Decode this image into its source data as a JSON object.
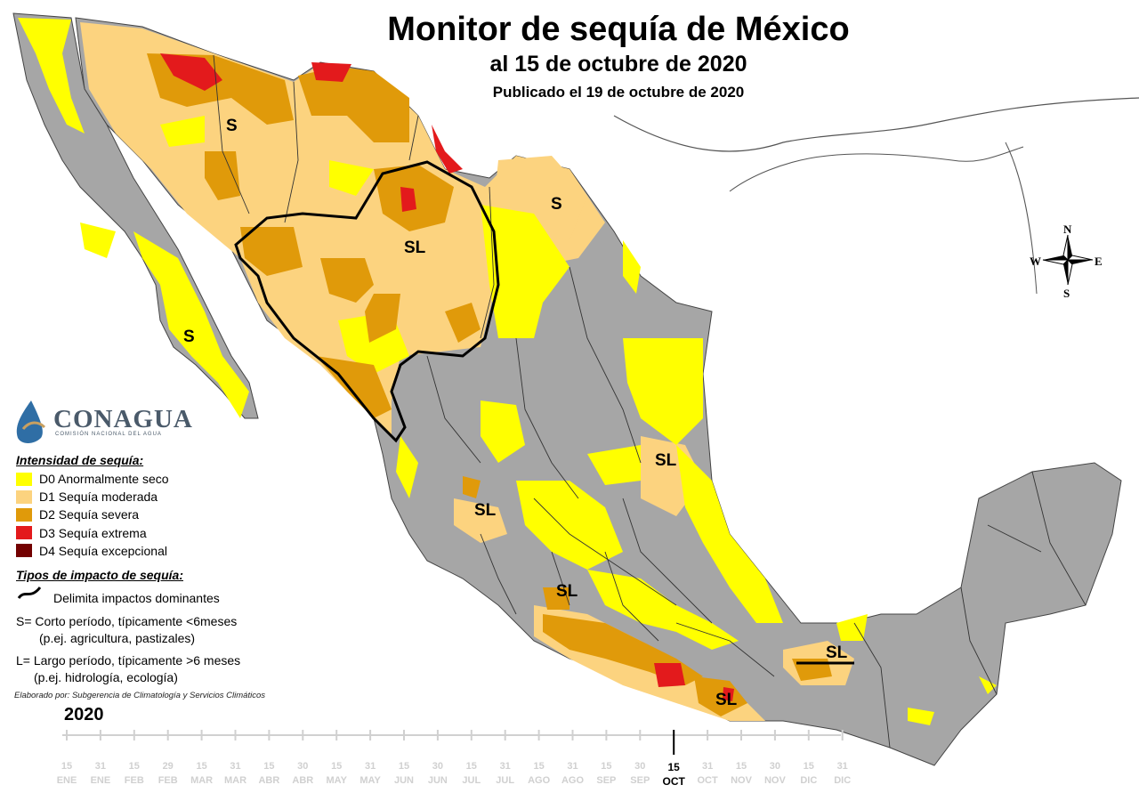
{
  "title": "Monitor de sequía de México",
  "subtitle": "al 15 de octubre de 2020",
  "published": "Publicado el 19 de octubre de 2020",
  "logo": {
    "name": "CONAGUA",
    "subtitle": "COMISIÓN NACIONAL DEL AGUA"
  },
  "legend": {
    "intensity_heading": "Intensidad de sequía:",
    "categories": [
      {
        "label": "D0 Anormalmente seco",
        "color": "#ffff00"
      },
      {
        "label": "D1 Sequía moderada",
        "color": "#fcd37f"
      },
      {
        "label": "D2 Sequía severa",
        "color": "#e09a0a"
      },
      {
        "label": "D3 Sequía extrema",
        "color": "#e31a1c"
      },
      {
        "label": "D4 Sequía excepcional",
        "color": "#730000"
      }
    ],
    "impact_heading": "Tipos de impacto de sequía:",
    "impact_line": "Delimita impactos dominantes",
    "short_term": "S= Corto período, típicamente <6meses",
    "short_term_example": "(p.ej. agricultura, pastizales)",
    "long_term": "L= Largo período, típicamente >6 meses",
    "long_term_example": "(p.ej. hidrología, ecología)"
  },
  "credit": "Elaborado por: Subgerencia de Climatología y Servicios Climáticos",
  "year": "2020",
  "compass": {
    "n": "N",
    "s": "S",
    "e": "E",
    "w": "W"
  },
  "zone_labels": [
    "S",
    "S",
    "S",
    "SL",
    "SL",
    "SL",
    "SL",
    "SL",
    "SL"
  ],
  "timeline": {
    "days": [
      "15",
      "31",
      "15",
      "29",
      "15",
      "31",
      "15",
      "30",
      "15",
      "31",
      "15",
      "30",
      "15",
      "31",
      "15",
      "31",
      "15",
      "30",
      "15",
      "31",
      "15",
      "30",
      "15",
      "31"
    ],
    "months": [
      "ENE",
      "ENE",
      "FEB",
      "FEB",
      "MAR",
      "MAR",
      "ABR",
      "ABR",
      "MAY",
      "MAY",
      "JUN",
      "JUN",
      "JUL",
      "JUL",
      "AGO",
      "AGO",
      "SEP",
      "SEP",
      "OCT",
      "OCT",
      "NOV",
      "NOV",
      "DIC",
      "DIC"
    ],
    "current_index": 18
  },
  "colors": {
    "land": "#a6a6a6",
    "border": "#222222",
    "ocean": "#ffffff",
    "usa": "#ffffff"
  }
}
